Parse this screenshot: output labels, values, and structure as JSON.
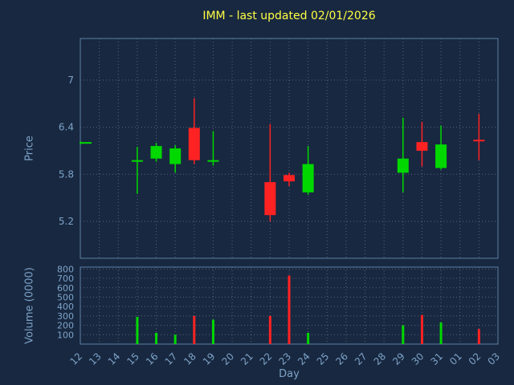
{
  "colors": {
    "background": "#182840",
    "up": "#00d800",
    "down": "#ff2222",
    "frame": "#5d80a6",
    "grid": "#8ea0b5",
    "text": "#7da3c8",
    "title": "#ffff44"
  },
  "chart_data": {
    "type": "candlestick",
    "title": "IMM - last updated 02/01/2026",
    "xlabel": "Day",
    "ylabel_price": "Price",
    "ylabel_volume": "Volume (0000)",
    "price_ylim": [
      4.73,
      7.53
    ],
    "volume_ylim": [
      0,
      820
    ],
    "price_ticks": [
      {
        "value": 5.2,
        "label": "5.2"
      },
      {
        "value": 5.8,
        "label": "5.8"
      },
      {
        "value": 6.4,
        "label": "6.4"
      },
      {
        "value": 7,
        "label": "7"
      }
    ],
    "volume_ticks": [
      {
        "value": 100,
        "label": "100"
      },
      {
        "value": 200,
        "label": "200"
      },
      {
        "value": 300,
        "label": "300"
      },
      {
        "value": 400,
        "label": "400"
      },
      {
        "value": 500,
        "label": "500"
      },
      {
        "value": 600,
        "label": "600"
      },
      {
        "value": 700,
        "label": "700"
      },
      {
        "value": 800,
        "label": "800"
      }
    ],
    "days": [
      "12",
      "13",
      "14",
      "15",
      "16",
      "17",
      "18",
      "19",
      "20",
      "21",
      "22",
      "23",
      "24",
      "25",
      "26",
      "27",
      "28",
      "29",
      "30",
      "31",
      "01",
      "02",
      "03"
    ],
    "candles": [
      {
        "day": "12",
        "open": 6.2,
        "high": 6.22,
        "low": 6.18,
        "close": 6.21
      },
      {
        "day": "15",
        "open": 5.96,
        "high": 6.15,
        "low": 5.55,
        "close": 5.98
      },
      {
        "day": "16",
        "open": 6.0,
        "high": 6.2,
        "low": 5.96,
        "close": 6.16
      },
      {
        "day": "17",
        "open": 5.93,
        "high": 6.17,
        "low": 5.82,
        "close": 6.13
      },
      {
        "day": "18",
        "open": 6.39,
        "high": 6.77,
        "low": 5.93,
        "close": 5.98
      },
      {
        "day": "19",
        "open": 5.96,
        "high": 6.35,
        "low": 5.91,
        "close": 5.98
      },
      {
        "day": "22",
        "open": 5.7,
        "high": 6.44,
        "low": 5.2,
        "close": 5.28
      },
      {
        "day": "23",
        "open": 5.79,
        "high": 5.82,
        "low": 5.65,
        "close": 5.71
      },
      {
        "day": "24",
        "open": 5.57,
        "high": 6.16,
        "low": 5.54,
        "close": 5.93
      },
      {
        "day": "29",
        "open": 5.82,
        "high": 6.52,
        "low": 5.57,
        "close": 6.0
      },
      {
        "day": "30",
        "open": 6.21,
        "high": 6.47,
        "low": 5.9,
        "close": 6.1
      },
      {
        "day": "31",
        "open": 5.88,
        "high": 6.42,
        "low": 5.86,
        "close": 6.18
      },
      {
        "day": "02",
        "open": 6.24,
        "high": 6.57,
        "low": 5.98,
        "close": 6.22
      }
    ],
    "volumes": [
      {
        "day": "15",
        "value": 290,
        "direction": "up"
      },
      {
        "day": "16",
        "value": 120,
        "direction": "up"
      },
      {
        "day": "17",
        "value": 100,
        "direction": "up"
      },
      {
        "day": "18",
        "value": 300,
        "direction": "down"
      },
      {
        "day": "19",
        "value": 260,
        "direction": "up"
      },
      {
        "day": "22",
        "value": 300,
        "direction": "down"
      },
      {
        "day": "23",
        "value": 730,
        "direction": "down"
      },
      {
        "day": "24",
        "value": 120,
        "direction": "up"
      },
      {
        "day": "29",
        "value": 200,
        "direction": "up"
      },
      {
        "day": "30",
        "value": 310,
        "direction": "down"
      },
      {
        "day": "31",
        "value": 230,
        "direction": "up"
      },
      {
        "day": "02",
        "value": 160,
        "direction": "down"
      }
    ]
  }
}
